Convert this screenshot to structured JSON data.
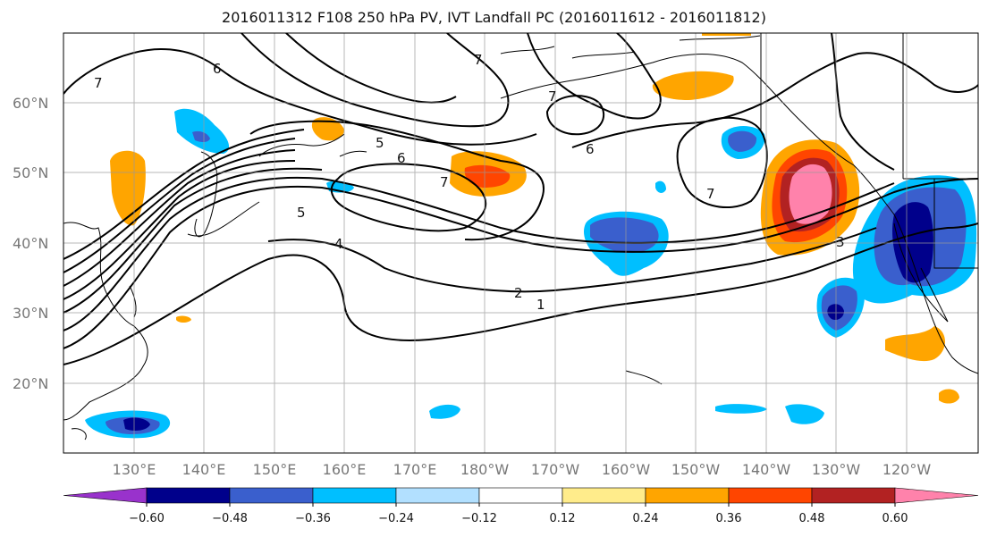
{
  "title": "2016011312 F108 250 hPa PV, IVT Landfall PC (2016011612 - 2016011812)",
  "map": {
    "lat_labels": [
      "60°N",
      "50°N",
      "40°N",
      "30°N",
      "20°N"
    ],
    "lon_labels": [
      "130°E",
      "140°E",
      "150°E",
      "160°E",
      "170°E",
      "180°W",
      "170°W",
      "160°W",
      "150°W",
      "140°W",
      "130°W",
      "120°W"
    ],
    "contour_labels": [
      "7",
      "6",
      "7",
      "5",
      "6",
      "6",
      "7",
      "5",
      "4",
      "7",
      "7",
      "3",
      "2",
      "1"
    ]
  },
  "colorbar": {
    "colors": [
      "#9932CC",
      "#00008B",
      "#3A5FCD",
      "#00BFFF",
      "#B2E0FF",
      "#FFFFFF",
      "#FFEC8B",
      "#FFA500",
      "#FF4500",
      "#B22222",
      "#FF82AB"
    ],
    "tick_labels": [
      "−0.60",
      "−0.48",
      "−0.36",
      "−0.24",
      "−0.12",
      "0.12",
      "0.24",
      "0.36",
      "0.48",
      "0.60"
    ]
  }
}
